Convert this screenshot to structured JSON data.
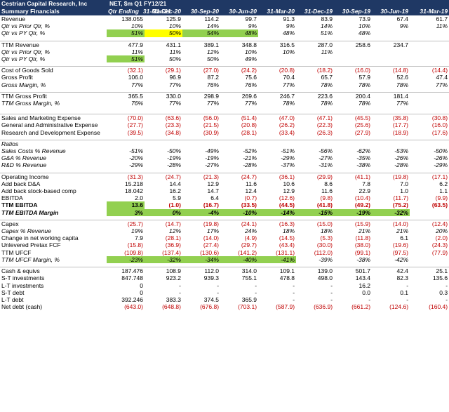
{
  "header": {
    "company": "Cestrian Capital Research, Inc",
    "subtitle": "Summary Financials",
    "units": "NET, $m  Q1 FY12/21",
    "qtr_ending": "Qtr Ending",
    "periods": [
      "31-Mar-21",
      "31-Dec-20",
      "30-Sep-20",
      "30-Jun-20",
      "31-Mar-20",
      "31-Dec-19",
      "30-Sep-19",
      "30-Jun-19",
      "31-Mar-19"
    ]
  },
  "rows": [
    {
      "label": "Revenue",
      "values": [
        "138.055",
        "125.9",
        "114.2",
        "99.7",
        "91.3",
        "83.9",
        "73.9",
        "67.4",
        "61.7"
      ]
    },
    {
      "label": "Qtr vs Prior Qtr, %",
      "italic": true,
      "values": [
        "10%",
        "10%",
        "14%",
        "9%",
        "9%",
        "14%",
        "10%",
        "9%",
        "11%"
      ]
    },
    {
      "label": "Qtr vs PY Qtr, %",
      "italic": true,
      "values": [
        "51%",
        "50%",
        "54%",
        "48%",
        "48%",
        "51%",
        "48%",
        "",
        ""
      ],
      "hl": [
        "green",
        "yellow",
        "green",
        "green",
        "",
        "",
        "",
        "",
        ""
      ]
    },
    {
      "blank": true
    },
    {
      "label": "TTM Revenue",
      "sec": true,
      "values": [
        "477.9",
        "431.1",
        "389.1",
        "348.8",
        "316.5",
        "287.0",
        "258.6",
        "234.7",
        ""
      ]
    },
    {
      "label": "Qtr vs Prior Qtr, %",
      "italic": true,
      "values": [
        "11%",
        "11%",
        "12%",
        "10%",
        "10%",
        "11%",
        "",
        "",
        ""
      ]
    },
    {
      "label": "Qtr vs PY Qtr, %",
      "italic": true,
      "values": [
        "51%",
        "50%",
        "50%",
        "49%",
        "",
        "",
        "",
        "",
        ""
      ],
      "hl": [
        "green",
        "",
        "",
        "",
        "",
        "",
        "",
        "",
        ""
      ]
    },
    {
      "blank": true
    },
    {
      "label": "Cost of Goods Sold",
      "sec": true,
      "values": [
        "(32.1)",
        "(29.1)",
        "(27.0)",
        "(24.2)",
        "(20.8)",
        "(18.2)",
        "(16.0)",
        "(14.8)",
        "(14.4)"
      ]
    },
    {
      "label": "Gross Profit",
      "values": [
        "106.0",
        "96.9",
        "87.2",
        "75.6",
        "70.4",
        "65.7",
        "57.9",
        "52.6",
        "47.4"
      ]
    },
    {
      "label": "Gross Margin, %",
      "italic": true,
      "values": [
        "77%",
        "77%",
        "76%",
        "76%",
        "77%",
        "78%",
        "78%",
        "78%",
        "77%"
      ]
    },
    {
      "blank": true
    },
    {
      "label": "TTM Gross Profit",
      "sec": true,
      "values": [
        "365.5",
        "330.0",
        "298.9",
        "269.6",
        "246.7",
        "223.6",
        "200.4",
        "181.4",
        ""
      ]
    },
    {
      "label": "TTM Gross Margin, %",
      "italic": true,
      "values": [
        "76%",
        "77%",
        "77%",
        "77%",
        "78%",
        "78%",
        "78%",
        "77%",
        ""
      ]
    },
    {
      "blank": true
    },
    {
      "blank": true
    },
    {
      "label": "Sales and Marketing Expense",
      "sec": true,
      "values": [
        "(70.0)",
        "(63.6)",
        "(56.0)",
        "(51.4)",
        "(47.0)",
        "(47.1)",
        "(45.5)",
        "(35.8)",
        "(30.8)"
      ]
    },
    {
      "label": "General and Administrative Expense",
      "values": [
        "(27.7)",
        "(23.3)",
        "(21.5)",
        "(20.8)",
        "(26.2)",
        "(22.3)",
        "(25.6)",
        "(17.7)",
        "(16.0)"
      ]
    },
    {
      "label": "Research and Development Expense",
      "values": [
        "(39.5)",
        "(34.8)",
        "(30.9)",
        "(28.1)",
        "(33.4)",
        "(26.3)",
        "(27.9)",
        "(18.9)",
        "(17.6)"
      ]
    },
    {
      "blank": true
    },
    {
      "label": "Ratios",
      "italic": true,
      "sec": true,
      "values": [
        "",
        "",
        "",
        "",
        "",
        "",
        "",
        "",
        ""
      ]
    },
    {
      "label": "Sales Costs % Revenue",
      "italic": true,
      "values": [
        "-51%",
        "-50%",
        "-49%",
        "-52%",
        "-51%",
        "-56%",
        "-62%",
        "-53%",
        "-50%"
      ]
    },
    {
      "label": "G&A % Revenue",
      "italic": true,
      "values": [
        "-20%",
        "-19%",
        "-19%",
        "-21%",
        "-29%",
        "-27%",
        "-35%",
        "-26%",
        "-26%"
      ]
    },
    {
      "label": "R&D % Revenue",
      "italic": true,
      "values": [
        "-29%",
        "-28%",
        "-27%",
        "-28%",
        "-37%",
        "-31%",
        "-38%",
        "-28%",
        "-29%"
      ]
    },
    {
      "blank": true
    },
    {
      "label": "Operating Income",
      "sec": true,
      "values": [
        "(31.3)",
        "(24.7)",
        "(21.3)",
        "(24.7)",
        "(36.1)",
        "(29.9)",
        "(41.1)",
        "(19.8)",
        "(17.1)"
      ]
    },
    {
      "label": "Add back D&A",
      "values": [
        "15.218",
        "14.4",
        "12.9",
        "11.6",
        "10.6",
        "8.6",
        "7.8",
        "7.0",
        "6.2"
      ]
    },
    {
      "label": "Add back stock-based comp",
      "values": [
        "18.042",
        "16.2",
        "14.7",
        "12.4",
        "12.9",
        "11.6",
        "22.9",
        "1.0",
        "1.1"
      ]
    },
    {
      "label": "EBITDA",
      "values": [
        "2.0",
        "5.9",
        "6.4",
        "(0.7)",
        "(12.6)",
        "(9.8)",
        "(10.4)",
        "(11.7)",
        "(9.9)"
      ]
    },
    {
      "label": "TTM EBITDA",
      "bold": true,
      "values": [
        "13.6",
        "(1.0)",
        "(16.7)",
        "(33.5)",
        "(44.5)",
        "(41.8)",
        "(49.2)",
        "(75.2)",
        "(63.5)"
      ],
      "hl": [
        "green",
        "",
        "",
        "",
        "",
        "",
        "",
        "",
        ""
      ]
    },
    {
      "label": "TTM EBITDA Margin",
      "bold": true,
      "italic": true,
      "values": [
        "3%",
        "0%",
        "-4%",
        "-10%",
        "-14%",
        "-15%",
        "-19%",
        "-32%",
        ""
      ],
      "hl": [
        "green",
        "green",
        "green",
        "green",
        "green",
        "green",
        "green",
        "green",
        ""
      ]
    },
    {
      "blank": true
    },
    {
      "label": "Capex",
      "sec": true,
      "values": [
        "(25.7)",
        "(14.7)",
        "(19.8)",
        "(24.1)",
        "(16.3)",
        "(15.0)",
        "(15.9)",
        "(14.0)",
        "(12.4)"
      ]
    },
    {
      "label": "Capex % Revenue",
      "italic": true,
      "values": [
        "19%",
        "12%",
        "17%",
        "24%",
        "18%",
        "18%",
        "21%",
        "21%",
        "20%"
      ]
    },
    {
      "label": "Change in net working capita",
      "values": [
        "7.9",
        "(28.1)",
        "(14.0)",
        "(4.9)",
        "(14.5)",
        "(5.3)",
        "(11.8)",
        "6.1",
        "(2.0)"
      ]
    },
    {
      "label": "Unlevered Pretax FCF",
      "values": [
        "(15.8)",
        "(36.9)",
        "(27.4)",
        "(29.7)",
        "(43.4)",
        "(30.0)",
        "(38.0)",
        "(19.6)",
        "(24.3)"
      ]
    },
    {
      "label": "TTM UFCF",
      "values": [
        "(109.8)",
        "(137.4)",
        "(130.6)",
        "(141.2)",
        "(131.1)",
        "(112.0)",
        "(99.1)",
        "(97.5)",
        "(77.9)"
      ]
    },
    {
      "label": "TTM UFCF Margin, %",
      "italic": true,
      "values": [
        "-23%",
        "-32%",
        "-34%",
        "-40%",
        "-41%",
        "-39%",
        "-38%",
        "-42%",
        ""
      ],
      "hl": [
        "green",
        "green",
        "green",
        "green",
        "green",
        "",
        "",
        "",
        ""
      ]
    },
    {
      "blank": true
    },
    {
      "label": "Cash & equivs",
      "sec": true,
      "values": [
        "187.476",
        "108.9",
        "112.0",
        "314.0",
        "109.1",
        "139.0",
        "501.7",
        "42.4",
        "25.1"
      ]
    },
    {
      "label": "S-T investments",
      "values": [
        "847.748",
        "923.2",
        "939.3",
        "755.1",
        "478.8",
        "498.0",
        "143.4",
        "82.3",
        "135.6"
      ]
    },
    {
      "label": "L-T investments",
      "values": [
        "0",
        "-",
        "-",
        "-",
        "-",
        "-",
        "16.2",
        "-",
        "-"
      ]
    },
    {
      "label": "S-T debt",
      "values": [
        "0",
        "-",
        "-",
        "-",
        "-",
        "-",
        "0.0",
        "0.1",
        "0.3"
      ]
    },
    {
      "label": "L-T debt",
      "values": [
        "392.246",
        "383.3",
        "374.5",
        "365.9",
        "-",
        "-",
        "-",
        "-",
        "-"
      ]
    },
    {
      "label": "Net debt (cash)",
      "values": [
        "(643.0)",
        "(648.8)",
        "(676.8)",
        "(703.1)",
        "(587.9)",
        "(636.9)",
        "(661.2)",
        "(124.6)",
        "(160.4)"
      ]
    }
  ]
}
